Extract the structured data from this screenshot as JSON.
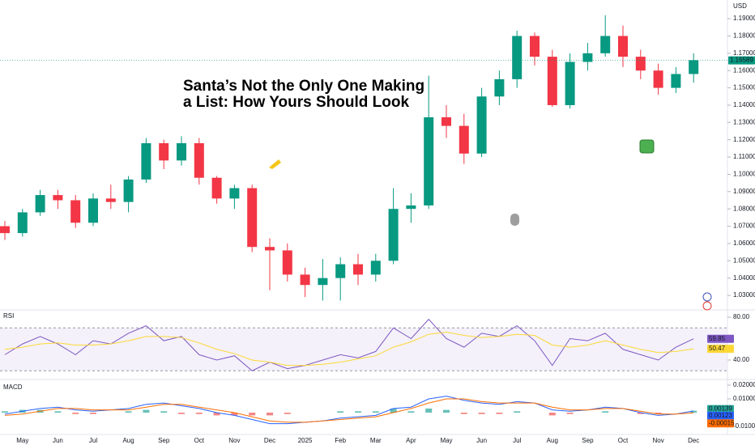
{
  "chart_data": [
    {
      "type": "candlestick",
      "title": [
        "Santa’s Not the Only One Making",
        "a List: How Yours Should Look"
      ],
      "currency": "USD",
      "x_labels": [
        "May",
        "Jun",
        "Jul",
        "Aug",
        "Sep",
        "Oct",
        "Nov",
        "Dec",
        "2025",
        "Feb",
        "Mar",
        "Apr",
        "May",
        "Jun",
        "Jul",
        "Aug",
        "Sep",
        "Oct",
        "Nov",
        "Dec"
      ],
      "open": [
        1.07,
        1.066,
        1.078,
        1.088,
        1.085,
        1.072,
        1.086,
        1.084,
        1.097,
        1.118,
        1.108,
        1.118,
        1.098,
        1.086,
        1.092,
        1.058,
        1.056,
        1.042,
        1.036,
        1.04,
        1.048,
        1.042,
        1.05,
        1.08,
        1.082,
        1.133,
        1.128,
        1.112,
        1.145,
        1.155,
        1.18,
        1.168,
        1.14,
        1.165,
        1.17,
        1.18,
        1.168,
        1.16,
        1.15,
        1.158
      ],
      "high": [
        1.073,
        1.08,
        1.091,
        1.091,
        1.088,
        1.089,
        1.094,
        1.099,
        1.121,
        1.12,
        1.122,
        1.121,
        1.099,
        1.094,
        1.094,
        1.063,
        1.06,
        1.046,
        1.051,
        1.052,
        1.054,
        1.054,
        1.092,
        1.089,
        1.157,
        1.14,
        1.135,
        1.15,
        1.16,
        1.183,
        1.182,
        1.172,
        1.17,
        1.176,
        1.192,
        1.186,
        1.172,
        1.164,
        1.162,
        1.17
      ],
      "low": [
        1.062,
        1.064,
        1.076,
        1.08,
        1.069,
        1.07,
        1.08,
        1.078,
        1.095,
        1.103,
        1.105,
        1.094,
        1.083,
        1.08,
        1.055,
        1.033,
        1.038,
        1.029,
        1.027,
        1.027,
        1.036,
        1.038,
        1.048,
        1.072,
        1.08,
        1.121,
        1.106,
        1.11,
        1.14,
        1.15,
        1.163,
        1.139,
        1.138,
        1.16,
        1.168,
        1.162,
        1.155,
        1.146,
        1.147,
        1.153
      ],
      "close": [
        1.066,
        1.078,
        1.088,
        1.085,
        1.072,
        1.086,
        1.084,
        1.097,
        1.118,
        1.108,
        1.118,
        1.098,
        1.086,
        1.092,
        1.058,
        1.056,
        1.042,
        1.036,
        1.04,
        1.048,
        1.042,
        1.05,
        1.08,
        1.082,
        1.133,
        1.128,
        1.112,
        1.145,
        1.155,
        1.18,
        1.168,
        1.14,
        1.165,
        1.17,
        1.18,
        1.168,
        1.16,
        1.15,
        1.158,
        1.166
      ],
      "up_color": "#089981",
      "down_color": "#f23645",
      "ylim": [
        1.023,
        1.2008
      ],
      "yticks": [
        {
          "value": 1.19,
          "label": "1.19000"
        },
        {
          "value": 1.18,
          "label": "1.18000"
        },
        {
          "value": 1.17,
          "label": "1.17000"
        },
        {
          "value": 1.16,
          "label": "1.16000"
        },
        {
          "value": 1.15,
          "label": "1.15000"
        },
        {
          "value": 1.14,
          "label": "1.14000"
        },
        {
          "value": 1.13,
          "label": "1.13000"
        },
        {
          "value": 1.12,
          "label": "1.12000"
        },
        {
          "value": 1.11,
          "label": "1.11000"
        },
        {
          "value": 1.1,
          "label": "1.10000"
        },
        {
          "value": 1.09,
          "label": "1.09000"
        },
        {
          "value": 1.08,
          "label": "1.08000"
        },
        {
          "value": 1.07,
          "label": "1.07000"
        },
        {
          "value": 1.06,
          "label": "1.06000"
        },
        {
          "value": 1.05,
          "label": "1.05000"
        },
        {
          "value": 1.04,
          "label": "1.04000"
        },
        {
          "value": 1.03,
          "label": "1.03000"
        }
      ],
      "last_price": 1.16589
    },
    {
      "type": "rsi",
      "label": "RSI",
      "ylim": [
        24.9,
        85.3
      ],
      "yticks": [
        {
          "value": 80,
          "label": "80.00"
        },
        {
          "value": 40,
          "label": "40.00"
        }
      ],
      "bands": [
        70,
        30
      ],
      "band_color": "#ede7f6",
      "lines": [
        {
          "color": "#7e57c2",
          "values": [
            45,
            55,
            62,
            55,
            45,
            58,
            55,
            65,
            72,
            58,
            62,
            45,
            40,
            44,
            30,
            38,
            32,
            35,
            40,
            45,
            42,
            48,
            70,
            60,
            78,
            60,
            52,
            65,
            62,
            72,
            58,
            35,
            60,
            58,
            65,
            50,
            45,
            40,
            52,
            59.85
          ]
        },
        {
          "color": "#fdd835",
          "values": [
            50,
            52,
            55,
            56,
            54,
            54,
            55,
            58,
            62,
            62,
            61,
            56,
            50,
            46,
            40,
            38,
            35,
            35,
            36,
            38,
            41,
            44,
            52,
            57,
            64,
            66,
            63,
            61,
            62,
            64,
            63,
            54,
            52,
            54,
            58,
            54,
            50,
            47,
            48,
            50.47
          ]
        }
      ]
    },
    {
      "type": "macd",
      "label": "MACD",
      "ylim": [
        -0.01647,
        0.02353
      ],
      "yticks": [
        {
          "value": 0.02,
          "label": "0.02000"
        },
        {
          "value": 0.01,
          "label": "0.01000"
        },
        {
          "value": -0.01,
          "label": "-0.01000"
        }
      ],
      "macd": [
        -0.001,
        0.001,
        0.003,
        0.004,
        0.002,
        0.001,
        0.002,
        0.003,
        0.006,
        0.007,
        0.005,
        0.003,
        0.0,
        -0.002,
        -0.005,
        -0.008,
        -0.008,
        -0.007,
        -0.006,
        -0.004,
        -0.003,
        -0.002,
        0.003,
        0.004,
        0.01,
        0.012,
        0.009,
        0.007,
        0.006,
        0.008,
        0.007,
        0.002,
        0.001,
        0.002,
        0.004,
        0.003,
        0.0,
        -0.002,
        -0.001,
        0.00123
      ],
      "signal": [
        -0.002,
        -0.001,
        0.001,
        0.003,
        0.003,
        0.002,
        0.002,
        0.002,
        0.004,
        0.006,
        0.006,
        0.004,
        0.002,
        0.0,
        -0.003,
        -0.006,
        -0.007,
        -0.007,
        -0.006,
        -0.005,
        -0.004,
        -0.003,
        0.0,
        0.003,
        0.007,
        0.01,
        0.01,
        0.008,
        0.007,
        0.007,
        0.007,
        0.004,
        0.002,
        0.002,
        0.003,
        0.003,
        0.001,
        -0.001,
        -0.001,
        -0.00015
      ],
      "histogram": [
        0.001,
        0.002,
        0.002,
        0.001,
        -0.001,
        -0.001,
        0.0,
        0.001,
        0.002,
        0.001,
        -0.001,
        -0.001,
        -0.002,
        -0.002,
        -0.002,
        -0.002,
        -0.001,
        0.0,
        0.0,
        0.001,
        0.001,
        0.001,
        0.003,
        0.001,
        0.003,
        0.002,
        -0.001,
        -0.001,
        -0.001,
        0.001,
        0.0,
        -0.002,
        -0.001,
        0.0,
        0.001,
        0.0,
        -0.001,
        -0.001,
        0.0,
        0.00139
      ],
      "macd_color": "#2962ff",
      "signal_color": "#ff6d00",
      "hist_up_color": "#26a69a",
      "hist_down_color": "#ef5350"
    }
  ]
}
